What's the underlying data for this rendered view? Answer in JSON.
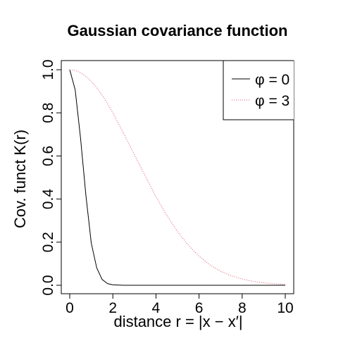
{
  "chart_data": {
    "type": "line",
    "title": "Gaussian covariance function",
    "xlabel": "distance r = |x − x′|",
    "ylabel": "Cov. funct K(r)",
    "xlim": [
      0,
      10
    ],
    "ylim": [
      0,
      1
    ],
    "x_ticks": [
      0,
      2,
      4,
      6,
      8,
      10
    ],
    "y_ticks": [
      0.0,
      0.2,
      0.4,
      0.6,
      0.8,
      1.0
    ],
    "x_tick_labels": [
      "0",
      "2",
      "4",
      "6",
      "8",
      "10"
    ],
    "y_tick_labels": [
      "0.0",
      "0.2",
      "0.4",
      "0.6",
      "0.8",
      "1.0"
    ],
    "x": [
      0,
      0.25,
      0.5,
      0.75,
      1,
      1.25,
      1.5,
      1.75,
      2,
      2.5,
      3,
      3.5,
      4,
      4.5,
      5,
      5.5,
      6,
      6.5,
      7,
      7.5,
      8,
      8.5,
      9,
      9.5,
      10
    ],
    "series": [
      {
        "name": "φ = 0",
        "color": "#000000",
        "line_style": "solid",
        "values": [
          1.0,
          0.908,
          0.684,
          0.416,
          0.195,
          0.081,
          0.027,
          0.008,
          0.002,
          0.0,
          0.0,
          0.0,
          0.0,
          0.0,
          0.0,
          0.0,
          0.0,
          0.0,
          0.0,
          0.0,
          0.0,
          0.0,
          0.0,
          0.0,
          0.0
        ]
      },
      {
        "name": "φ = 3",
        "color": "#df536b",
        "line_style": "dotted",
        "values": [
          1.0,
          0.997,
          0.986,
          0.969,
          0.946,
          0.917,
          0.882,
          0.843,
          0.8,
          0.705,
          0.606,
          0.508,
          0.411,
          0.325,
          0.249,
          0.186,
          0.135,
          0.095,
          0.065,
          0.044,
          0.029,
          0.018,
          0.011,
          0.007,
          0.004
        ]
      }
    ],
    "legend_position": "top-right",
    "grid": false
  }
}
